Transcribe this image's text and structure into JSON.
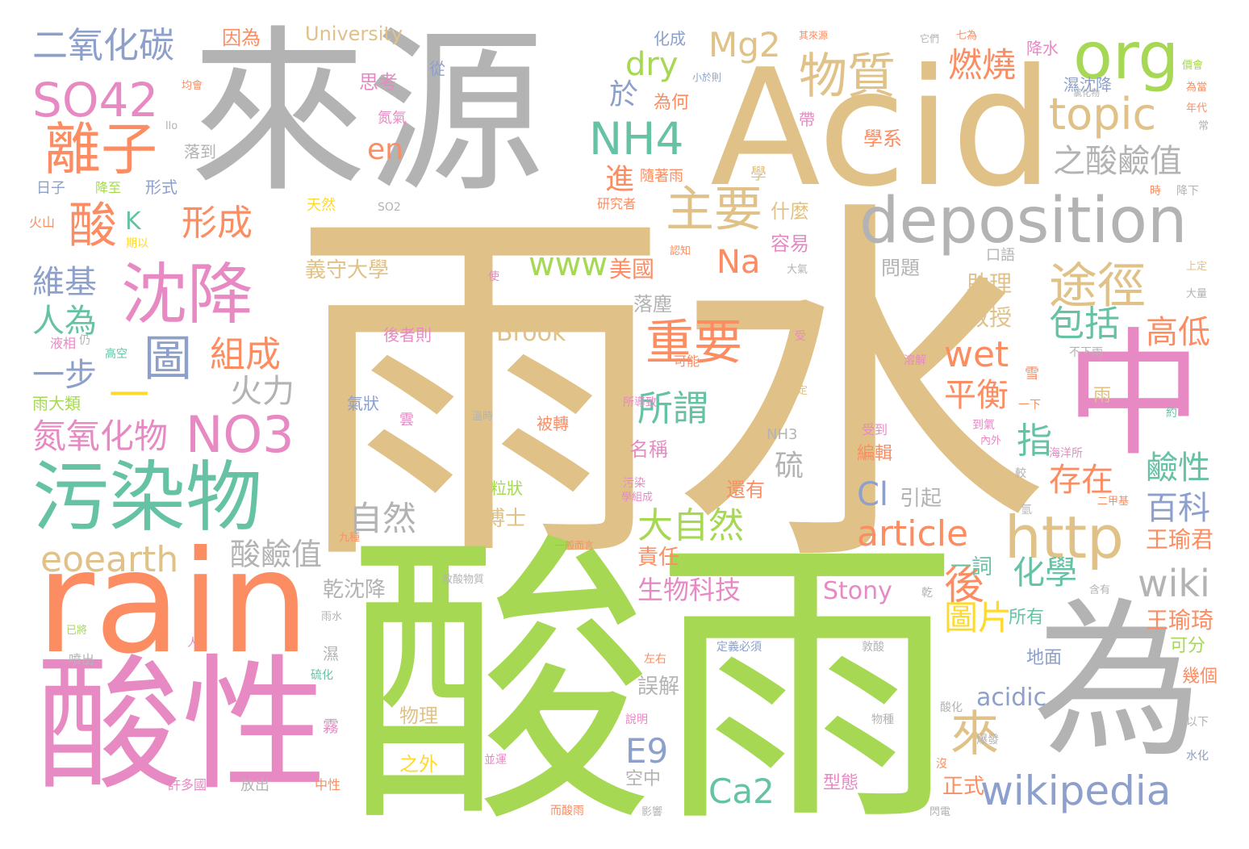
{
  "palette": {
    "tan": "#e0c288",
    "green": "#a6d854",
    "grey": "#b3b3b3",
    "orange": "#fc8d62",
    "pink": "#e78ac3",
    "teal": "#66c2a5",
    "blue": "#8da0cb",
    "yellow": "#ffd92f",
    "background": "#ffffff"
  },
  "words": [
    {
      "text": "雨水"
    },
    {
      "text": "酸雨"
    },
    {
      "text": "來源"
    },
    {
      "text": "Acid"
    },
    {
      "text": "rain"
    },
    {
      "text": "酸性"
    },
    {
      "text": "為"
    },
    {
      "text": "中"
    },
    {
      "text": "污染物"
    },
    {
      "text": "deposition"
    },
    {
      "text": "沈降"
    },
    {
      "text": "離子"
    },
    {
      "text": "http"
    },
    {
      "text": "org"
    },
    {
      "text": "物質"
    },
    {
      "text": "主要"
    },
    {
      "text": "途徑"
    },
    {
      "text": "NO3"
    },
    {
      "text": "SO42"
    },
    {
      "text": "wikipedia"
    },
    {
      "text": "topic"
    },
    {
      "text": "二氧化碳"
    },
    {
      "text": "NH4"
    },
    {
      "text": "重要"
    },
    {
      "text": "酸"
    },
    {
      "text": "形成"
    },
    {
      "text": "圖"
    },
    {
      "text": "組成"
    },
    {
      "text": "氮氧化物"
    },
    {
      "text": "eoearth"
    },
    {
      "text": "article"
    },
    {
      "text": "wiki"
    },
    {
      "text": "之酸鹼值"
    },
    {
      "text": "Mg2"
    },
    {
      "text": "dry"
    },
    {
      "text": "大自然"
    },
    {
      "text": "Ca2"
    },
    {
      "text": "一"
    },
    {
      "text": "wet"
    },
    {
      "text": "平衡"
    },
    {
      "text": "包括"
    },
    {
      "text": "高低"
    },
    {
      "text": "化學"
    },
    {
      "text": "百科"
    },
    {
      "text": "圖片"
    },
    {
      "text": "後"
    },
    {
      "text": "來"
    },
    {
      "text": "所謂"
    },
    {
      "text": "鹼性"
    },
    {
      "text": "存在"
    },
    {
      "text": "燃燒"
    },
    {
      "text": "自然"
    },
    {
      "text": "火力"
    },
    {
      "text": "酸鹼值"
    },
    {
      "text": "指"
    },
    {
      "text": "維基"
    },
    {
      "text": "人為"
    },
    {
      "text": "一步"
    },
    {
      "text": "www"
    },
    {
      "text": "en"
    },
    {
      "text": "Na"
    },
    {
      "text": "E9"
    },
    {
      "text": "Cl"
    },
    {
      "text": "於"
    },
    {
      "text": "進"
    },
    {
      "text": "生物科技"
    },
    {
      "text": "acidic"
    },
    {
      "text": "Stony"
    },
    {
      "text": "Brook"
    },
    {
      "text": "University"
    },
    {
      "text": "硫"
    },
    {
      "text": "K"
    },
    {
      "text": "王瑜君"
    },
    {
      "text": "王瑜琦"
    },
    {
      "text": "義守大學"
    },
    {
      "text": "美國"
    },
    {
      "text": "教授"
    },
    {
      "text": "助理"
    },
    {
      "text": "乾沈降"
    },
    {
      "text": "誤解"
    },
    {
      "text": "責任"
    },
    {
      "text": "引起"
    },
    {
      "text": "一詞"
    },
    {
      "text": "正式"
    },
    {
      "text": "博士"
    },
    {
      "text": "因為"
    },
    {
      "text": "什麼"
    },
    {
      "text": "問題"
    },
    {
      "text": "學系"
    },
    {
      "text": "思考"
    },
    {
      "text": "容易"
    },
    {
      "text": "落塵"
    },
    {
      "text": "名稱"
    },
    {
      "text": "還有"
    },
    {
      "text": "物理"
    },
    {
      "text": "之外"
    },
    {
      "text": "空中"
    },
    {
      "text": "型態"
    },
    {
      "text": "編輯"
    },
    {
      "text": "所有"
    },
    {
      "text": "地面"
    },
    {
      "text": "可分"
    },
    {
      "text": "幾個"
    },
    {
      "text": "為何"
    },
    {
      "text": "化成"
    },
    {
      "text": "降水"
    },
    {
      "text": "濕沈降"
    },
    {
      "text": "後者則"
    },
    {
      "text": "被轉"
    },
    {
      "text": "粒狀"
    },
    {
      "text": "氣狀"
    },
    {
      "text": "雨大類"
    },
    {
      "text": "形式"
    },
    {
      "text": "落到"
    },
    {
      "text": "氮氣"
    },
    {
      "text": "隨著雨"
    },
    {
      "text": "天然"
    },
    {
      "text": "口語"
    },
    {
      "text": "學"
    },
    {
      "text": "研究者"
    },
    {
      "text": "日子"
    },
    {
      "text": "降至"
    },
    {
      "text": "帶"
    },
    {
      "text": "從"
    },
    {
      "text": "霧"
    },
    {
      "text": "濕"
    },
    {
      "text": "放出"
    },
    {
      "text": "中性"
    },
    {
      "text": "許多國"
    },
    {
      "text": "噴出"
    },
    {
      "text": "液相"
    },
    {
      "text": "仍"
    },
    {
      "text": "高空"
    },
    {
      "text": "火山"
    },
    {
      "text": "期以"
    },
    {
      "text": "使"
    },
    {
      "text": "雨"
    },
    {
      "text": "雪"
    },
    {
      "text": "約"
    },
    {
      "text": "以下"
    },
    {
      "text": "水化"
    },
    {
      "text": "可能"
    },
    {
      "text": "不下雨"
    },
    {
      "text": "溶解"
    },
    {
      "text": "受到"
    },
    {
      "text": "海洋所"
    },
    {
      "text": "內外"
    },
    {
      "text": "到氣"
    },
    {
      "text": "二甲基"
    },
    {
      "text": "含有"
    },
    {
      "text": "影響"
    },
    {
      "text": "閃電"
    },
    {
      "text": "而酸雨"
    },
    {
      "text": "定義必須"
    },
    {
      "text": "敦酸"
    },
    {
      "text": "說明"
    },
    {
      "text": "酸化"
    },
    {
      "text": "物種"
    },
    {
      "text": "並運"
    },
    {
      "text": "爆發"
    },
    {
      "text": "沒"
    },
    {
      "text": "左右"
    },
    {
      "text": "硫化"
    },
    {
      "text": "已將"
    },
    {
      "text": "雨水"
    },
    {
      "text": "人"
    },
    {
      "text": "九種"
    },
    {
      "text": "致酸物質"
    },
    {
      "text": "一般而言"
    },
    {
      "text": "乾"
    },
    {
      "text": "較"
    },
    {
      "text": "氫"
    },
    {
      "text": "污染"
    },
    {
      "text": "學組成"
    },
    {
      "text": "溫時"
    },
    {
      "text": "所導致"
    },
    {
      "text": "雲"
    },
    {
      "text": "NH3"
    },
    {
      "text": "一下"
    },
    {
      "text": "SO2"
    },
    {
      "text": "認知"
    },
    {
      "text": "小於則"
    },
    {
      "text": "大氣"
    },
    {
      "text": "受"
    },
    {
      "text": "確定"
    },
    {
      "text": "上定"
    },
    {
      "text": "大量"
    },
    {
      "text": "時"
    },
    {
      "text": "降下"
    },
    {
      "text": "年代"
    },
    {
      "text": "常"
    },
    {
      "text": "價會"
    },
    {
      "text": "為當"
    },
    {
      "text": "均會"
    },
    {
      "text": "llo"
    },
    {
      "text": "其來源"
    },
    {
      "text": "它們"
    },
    {
      "text": "七為"
    },
    {
      "text": "氯化物"
    }
  ]
}
